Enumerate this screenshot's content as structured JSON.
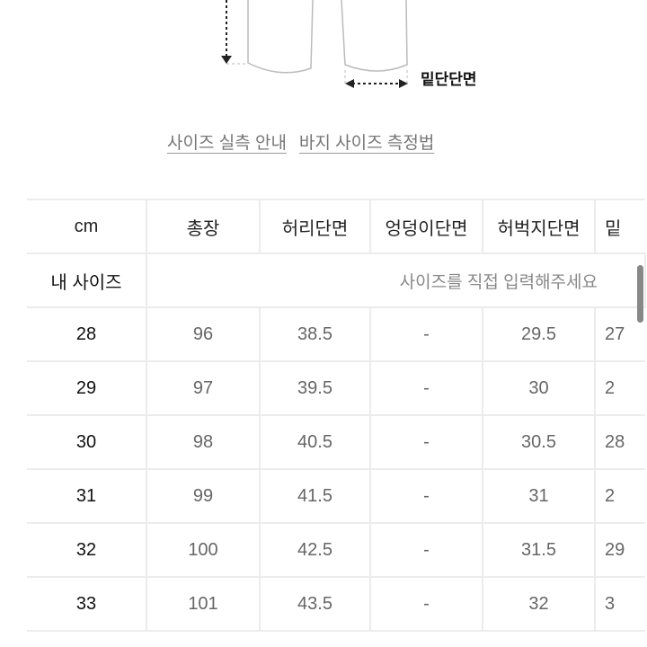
{
  "diagram": {
    "hem_label": "밑단단면"
  },
  "links": [
    "사이즈 실측 안내",
    "바지 사이즈 측정법"
  ],
  "table": {
    "headers": [
      "cm",
      "총장",
      "허리단면",
      "엉덩이단면",
      "허벅지단면",
      "밑"
    ],
    "my_size_label": "내 사이즈",
    "my_size_placeholder": "사이즈를 직접 입력해주세요",
    "rows": [
      [
        "28",
        "96",
        "38.5",
        "-",
        "29.5",
        "27"
      ],
      [
        "29",
        "97",
        "39.5",
        "-",
        "30",
        "2"
      ],
      [
        "30",
        "98",
        "40.5",
        "-",
        "30.5",
        "28"
      ],
      [
        "31",
        "99",
        "41.5",
        "-",
        "31",
        "2"
      ],
      [
        "32",
        "100",
        "42.5",
        "-",
        "31.5",
        "29"
      ],
      [
        "33",
        "101",
        "43.5",
        "-",
        "32",
        "3"
      ]
    ]
  }
}
